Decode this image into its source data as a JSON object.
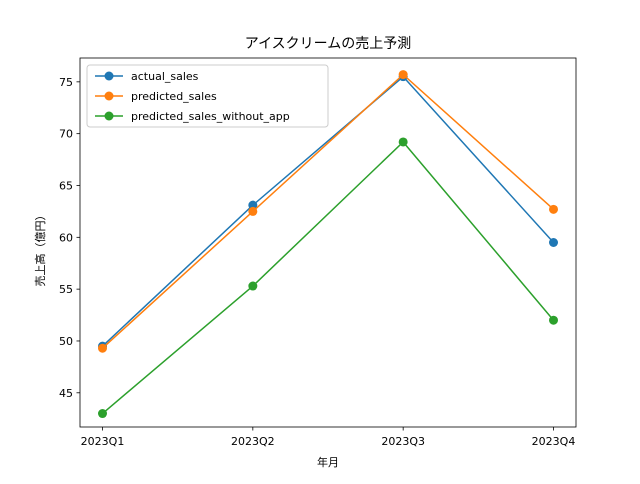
{
  "chart_data": {
    "type": "line",
    "title": "アイスクリームの売上予測",
    "xlabel": "年月",
    "ylabel": "売上高（億円）",
    "categories": [
      "2023Q1",
      "2023Q2",
      "2023Q3",
      "2023Q4"
    ],
    "ylim": [
      41.7,
      77.3
    ],
    "yticks": [
      45,
      50,
      55,
      60,
      65,
      70,
      75
    ],
    "grid": false,
    "legend_position": "upper-left",
    "series": [
      {
        "name": "actual_sales",
        "color": "#1f77b4",
        "marker": "circle",
        "values": [
          49.5,
          63.1,
          75.5,
          59.5
        ]
      },
      {
        "name": "predicted_sales",
        "color": "#ff7f0e",
        "marker": "circle",
        "values": [
          49.3,
          62.5,
          75.7,
          62.7
        ]
      },
      {
        "name": "predicted_sales_without_app",
        "color": "#2ca02c",
        "marker": "circle",
        "values": [
          43.0,
          55.3,
          69.2,
          52.0
        ]
      }
    ]
  }
}
